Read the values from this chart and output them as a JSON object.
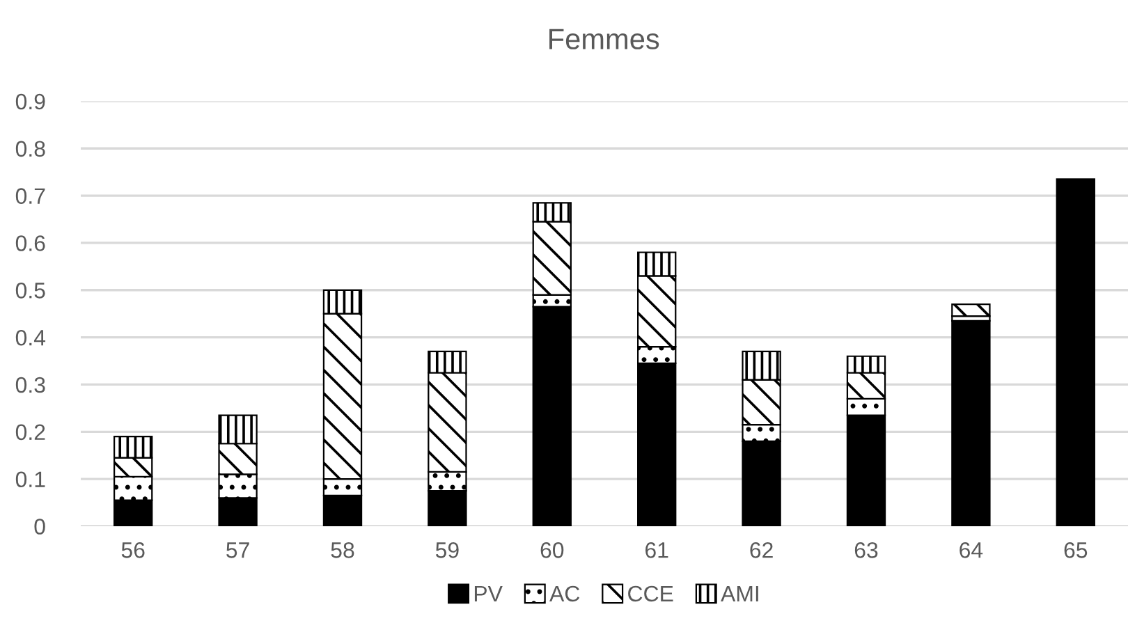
{
  "chart_data": {
    "type": "bar",
    "title": "Femmes",
    "categories": [
      "56",
      "57",
      "58",
      "59",
      "60",
      "61",
      "62",
      "63",
      "64",
      "65"
    ],
    "stacked": true,
    "series": [
      {
        "name": "PV",
        "color": "#000000",
        "values": [
          0.055,
          0.06,
          0.065,
          0.075,
          0.465,
          0.345,
          0.18,
          0.235,
          0.435,
          0.735
        ]
      },
      {
        "name": "AC",
        "color": "#ffffff",
        "values": [
          0.05,
          0.05,
          0.035,
          0.04,
          0.025,
          0.035,
          0.035,
          0.035,
          0.01,
          0
        ]
      },
      {
        "name": "CCE",
        "color": "#ffffff",
        "values": [
          0.04,
          0.065,
          0.35,
          0.21,
          0.155,
          0.15,
          0.095,
          0.055,
          0.025,
          0
        ]
      },
      {
        "name": "AMI",
        "color": "#ffffff",
        "values": [
          0.045,
          0.06,
          0.05,
          0.045,
          0.04,
          0.05,
          0.06,
          0.035,
          0,
          0
        ]
      }
    ],
    "ylim": [
      0,
      0.9
    ],
    "yticks": [
      0,
      0.1,
      0.2,
      0.3,
      0.4,
      0.5,
      0.6,
      0.7,
      0.8,
      0.9
    ],
    "grid": "y",
    "legend": "bottom"
  }
}
